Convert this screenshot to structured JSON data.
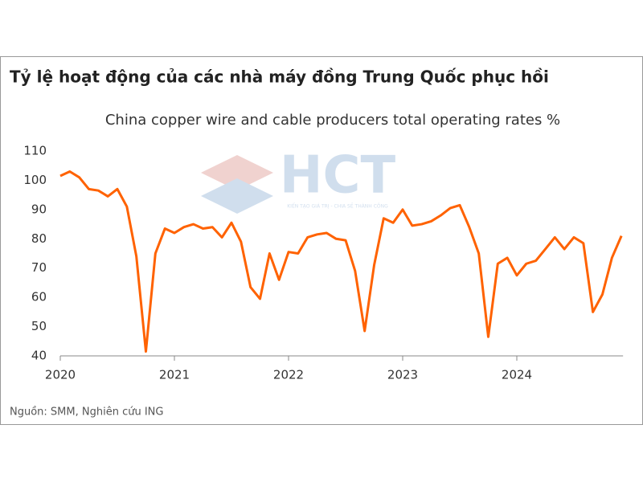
{
  "chart_data": {
    "type": "line",
    "title": "Tỷ lệ hoạt động của các nhà máy đồng Trung Quốc phục hồi",
    "subtitle": "China copper wire and cable producers total operating rates %",
    "source": "Nguồn: SMM, Nghiên cứu ING",
    "watermark": "HCT",
    "watermark_tagline": "KIẾN TẠO GIÁ TRỊ - CHIA SẺ THÀNH CÔNG",
    "categories": [
      "2020",
      null,
      null,
      null,
      null,
      null,
      null,
      null,
      null,
      null,
      null,
      null,
      "2021",
      null,
      null,
      null,
      null,
      null,
      null,
      null,
      null,
      null,
      null,
      null,
      "2022",
      null,
      null,
      null,
      null,
      null,
      null,
      null,
      null,
      null,
      null,
      null,
      "2023",
      null,
      null,
      null,
      null,
      null,
      null,
      null,
      null,
      null,
      null,
      null,
      "2024",
      null,
      null,
      null,
      null,
      null,
      null,
      null,
      null,
      null,
      null,
      null
    ],
    "values": [
      101.5,
      103,
      101,
      97,
      96.5,
      94.5,
      97,
      91,
      74,
      41.5,
      75,
      83.5,
      82,
      84,
      85,
      83.5,
      84,
      80.5,
      85.5,
      79,
      63.5,
      59.5,
      75,
      66,
      75.5,
      75,
      80.5,
      81.5,
      82,
      80,
      79.5,
      69,
      48.5,
      71,
      87,
      85.5,
      90,
      84.5,
      85,
      86,
      88,
      90.5,
      91.5,
      84,
      75,
      46.5,
      71.5,
      73.5,
      67.5,
      71.5,
      72.5,
      76.5,
      80.5,
      76.5,
      80.5,
      78.5,
      55,
      61,
      73.5,
      81
    ],
    "color": "#ff6200",
    "ylim": [
      40,
      110
    ],
    "yticks": [
      40,
      50,
      60,
      70,
      80,
      90,
      100,
      110
    ],
    "grid": false
  }
}
